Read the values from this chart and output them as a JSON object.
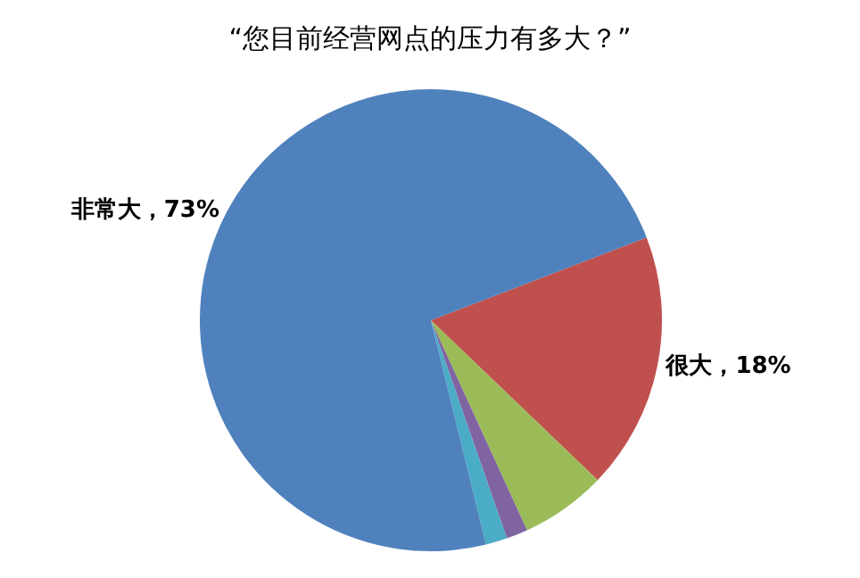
{
  "chart_data": {
    "type": "pie",
    "title": "“您目前经营网点的压力有多大？”",
    "categories": [
      "很大",
      null,
      null,
      null,
      "非常大"
    ],
    "values": [
      18,
      6,
      1.5,
      1.5,
      73
    ],
    "colors": [
      "#c0504d",
      "#9bbb59",
      "#8064a2",
      "#4bacc6",
      "#4f81bd"
    ],
    "value_labels": [
      "18%",
      null,
      null,
      null,
      "73%"
    ],
    "legend": false
  }
}
